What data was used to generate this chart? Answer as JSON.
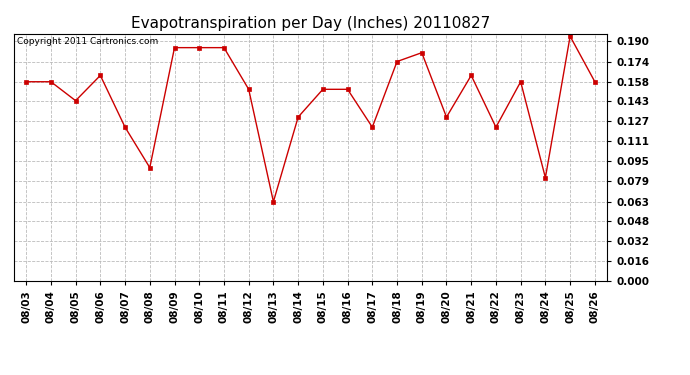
{
  "title": "Evapotranspiration per Day (Inches) 20110827",
  "copyright_text": "Copyright 2011 Cartronics.com",
  "dates": [
    "08/03",
    "08/04",
    "08/05",
    "08/06",
    "08/07",
    "08/08",
    "08/09",
    "08/10",
    "08/11",
    "08/12",
    "08/13",
    "08/14",
    "08/15",
    "08/16",
    "08/17",
    "08/18",
    "08/19",
    "08/20",
    "08/21",
    "08/22",
    "08/23",
    "08/24",
    "08/25",
    "08/26"
  ],
  "values": [
    0.158,
    0.158,
    0.143,
    0.163,
    0.122,
    0.09,
    0.185,
    0.185,
    0.185,
    0.152,
    0.063,
    0.13,
    0.152,
    0.152,
    0.122,
    0.174,
    0.181,
    0.13,
    0.163,
    0.122,
    0.158,
    0.082,
    0.194,
    0.158
  ],
  "yticks": [
    0.0,
    0.016,
    0.032,
    0.048,
    0.063,
    0.079,
    0.095,
    0.111,
    0.127,
    0.143,
    0.158,
    0.174,
    0.19
  ],
  "line_color": "#cc0000",
  "marker": "s",
  "marker_size": 3,
  "background_color": "#ffffff",
  "plot_bg_color": "#ffffff",
  "grid_color": "#bbbbbb",
  "title_fontsize": 11,
  "tick_fontsize": 7.5,
  "copyright_fontsize": 6.5
}
